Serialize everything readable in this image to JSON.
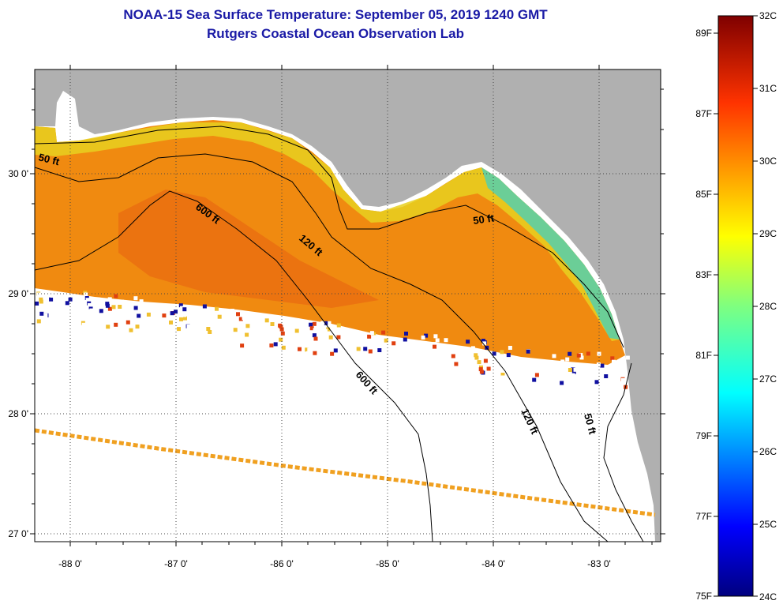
{
  "title": "NOAA-15 Sea Surface Temperature:  September 05, 2019 1240 GMT",
  "subtitle": "Rutgers Coastal Ocean Observation Lab",
  "map": {
    "lon_labels": [
      "-88 0'",
      "-87 0'",
      "-86 0'",
      "-85 0'",
      "-84 0'",
      "-83 0'"
    ],
    "lat_labels": [
      "30 0'",
      "29 0'",
      "28 0'",
      "27 0'"
    ],
    "contours": [
      {
        "label": "50 ft"
      },
      {
        "label": "120 ft"
      },
      {
        "label": "600 ft"
      },
      {
        "label": "50 ft"
      },
      {
        "label": "600 ft"
      },
      {
        "label": "120 ft"
      },
      {
        "label": "50 ft"
      }
    ],
    "colors": {
      "land": "#b0b0b0",
      "no_data": "#ffffff",
      "warm_water": "#f08a10",
      "coastal_water": "#e8d020"
    }
  },
  "colorbar": {
    "celsius": [
      "32C",
      "31C",
      "30C",
      "29C",
      "28C",
      "27C",
      "26C",
      "25C",
      "24C"
    ],
    "fahrenheit": [
      "89F",
      "87F",
      "85F",
      "83F",
      "81F",
      "79F",
      "77F",
      "75F"
    ],
    "range_c": [
      24,
      32
    ]
  }
}
